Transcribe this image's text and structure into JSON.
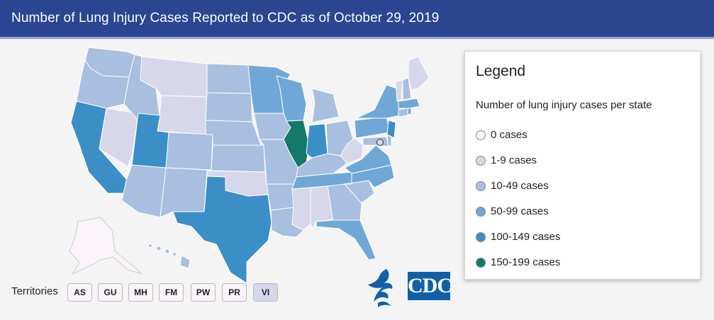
{
  "header": {
    "title": "Number of Lung Injury Cases Reported to CDC as of October 29, 2019"
  },
  "legend": {
    "title": "Legend",
    "subtitle": "Number of lung injury cases per state",
    "items": [
      {
        "label": "0 cases",
        "color": "#fbf3fa"
      },
      {
        "label": "1-9 cases",
        "color": "#d7d7eb"
      },
      {
        "label": "10-49 cases",
        "color": "#a8bfe0"
      },
      {
        "label": "50-99 cases",
        "color": "#6fa8d6"
      },
      {
        "label": "100-149 cases",
        "color": "#3b8fc6"
      },
      {
        "label": "150-199 cases",
        "color": "#13796a"
      }
    ]
  },
  "territories": {
    "label": "Territories",
    "buttons": [
      {
        "code": "AS",
        "color": "#fbf3fa"
      },
      {
        "code": "GU",
        "color": "#fbf3fa"
      },
      {
        "code": "MH",
        "color": "#fbf3fa"
      },
      {
        "code": "FM",
        "color": "#fbf3fa"
      },
      {
        "code": "PW",
        "color": "#fbf3fa"
      },
      {
        "code": "PR",
        "color": "#fbf3fa"
      },
      {
        "code": "VI",
        "color": "#d7d7eb"
      }
    ]
  },
  "logos": {
    "cdc": "CDC"
  }
}
